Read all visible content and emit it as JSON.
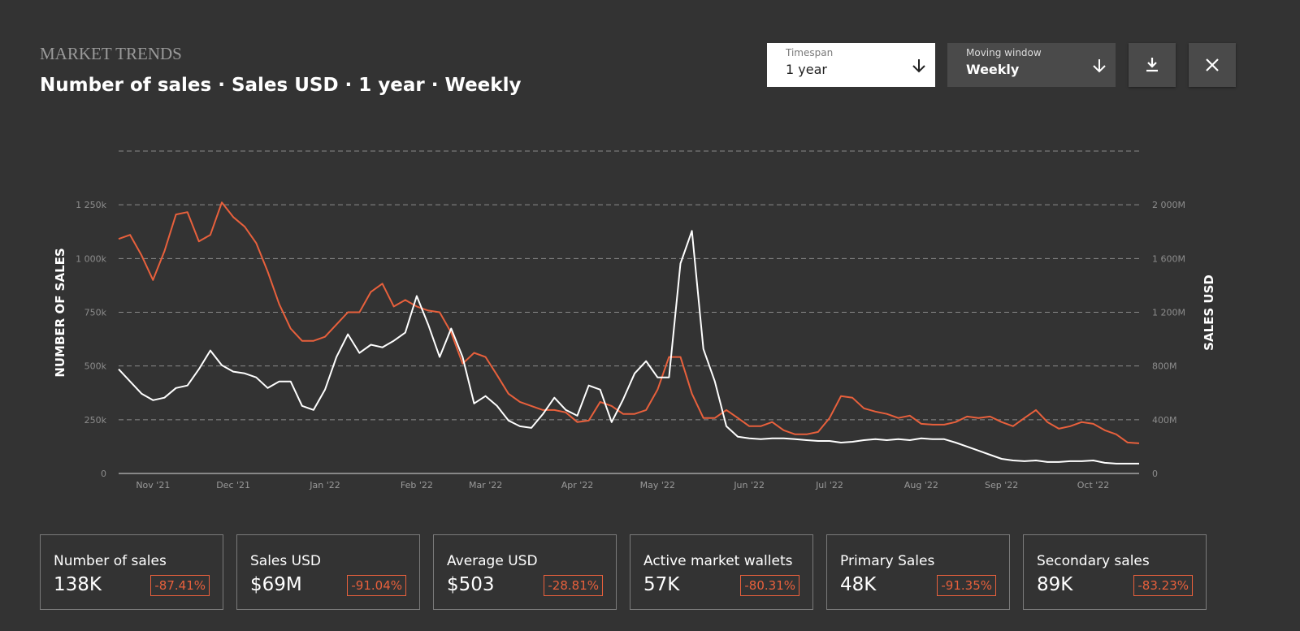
{
  "header": {
    "kicker": "MARKET TRENDS",
    "title": "Number of sales · Sales USD · 1 year · Weekly"
  },
  "controls": {
    "timespan": {
      "label": "Timespan",
      "value": "1 year"
    },
    "window": {
      "label": "Moving window",
      "value": "Weekly"
    }
  },
  "chart_data": {
    "type": "line",
    "ylabel": "NUMBER OF SALES",
    "y2label": "SALES USD",
    "categories": [
      null,
      null,
      null,
      "Nov '21",
      null,
      null,
      null,
      null,
      null,
      null,
      "Dec '21",
      null,
      null,
      null,
      null,
      null,
      null,
      null,
      "Jan '22",
      null,
      null,
      null,
      null,
      null,
      null,
      null,
      "Feb '22",
      null,
      null,
      null,
      null,
      null,
      "Mar '22",
      null,
      null,
      null,
      null,
      null,
      null,
      null,
      "Apr '22",
      null,
      null,
      null,
      null,
      null,
      null,
      "May '22",
      null,
      null,
      null,
      null,
      null,
      null,
      null,
      "Jun '22",
      null,
      null,
      null,
      null,
      null,
      null,
      "Jul '22",
      null,
      null,
      null,
      null,
      null,
      null,
      null,
      "Aug '22",
      null,
      null,
      null,
      null,
      null,
      null,
      "Sep '22",
      null,
      null,
      null,
      null,
      null,
      null,
      null,
      "Oct '22",
      null,
      null,
      null,
      null
    ],
    "series": [
      {
        "color": "#e8603c",
        "axis": "y",
        "values": [
          1091000,
          1110000,
          1015000,
          900000,
          1034000,
          1205000,
          1216000,
          1080000,
          1110000,
          1261000,
          1193000,
          1148000,
          1072000,
          939000,
          788000,
          674000,
          617000,
          617000,
          636000,
          693000,
          750000,
          750000,
          845000,
          883000,
          777000,
          807000,
          777000,
          758000,
          750000,
          655000,
          511000,
          561000,
          542000,
          458000,
          371000,
          333000,
          314000,
          295000,
          295000,
          284000,
          239000,
          246000,
          333000,
          314000,
          277000,
          277000,
          295000,
          390000,
          542000,
          542000,
          371000,
          258000,
          258000,
          295000,
          258000,
          220000,
          220000,
          239000,
          201000,
          182000,
          182000,
          193000,
          258000,
          360000,
          352000,
          303000,
          288000,
          277000,
          258000,
          269000,
          231000,
          227000,
          227000,
          239000,
          265000,
          258000,
          265000,
          239000,
          220000,
          258000,
          295000,
          239000,
          208000,
          220000,
          239000,
          231000,
          201000,
          182000,
          144000,
          140000
        ]
      },
      {
        "color": "#ffffff",
        "axis": "y2",
        "values": [
          776,
          685,
          594,
          545,
          564,
          636,
          655,
          776,
          915,
          806,
          758,
          745,
          715,
          636,
          685,
          685,
          503,
          473,
          624,
          867,
          1036,
          897,
          958,
          939,
          988,
          1048,
          1321,
          1109,
          867,
          1079,
          867,
          521,
          576,
          503,
          394,
          351,
          339,
          442,
          564,
          473,
          430,
          655,
          624,
          382,
          551,
          745,
          836,
          715,
          715,
          1563,
          1806,
          927,
          685,
          351,
          273,
          261,
          255,
          261,
          261,
          255,
          248,
          242,
          242,
          230,
          236,
          248,
          255,
          248,
          255,
          248,
          261,
          255,
          255,
          230,
          200,
          170,
          139,
          109,
          97,
          91,
          97,
          85,
          85,
          91,
          91,
          97,
          79,
          73,
          73,
          73
        ]
      }
    ],
    "ylim": [
      0,
      1500000
    ],
    "yticks": [
      0,
      {
        "value": 250000,
        "label": "250k"
      },
      {
        "value": 500000,
        "label": "500k"
      },
      {
        "value": 750000,
        "label": "750k"
      },
      {
        "value": 1000000,
        "label": "1 000k"
      },
      {
        "value": 1250000,
        "label": "1 250k"
      }
    ],
    "y2lim": [
      0,
      2400
    ],
    "y2ticks": [
      0,
      {
        "value": 400,
        "label": "400M"
      },
      {
        "value": 800,
        "label": "800M"
      },
      {
        "value": 1200,
        "label": "1 200M"
      },
      {
        "value": 1600,
        "label": "1 600M"
      },
      {
        "value": 2000,
        "label": "2 000M"
      }
    ],
    "grid": true
  },
  "stats": [
    {
      "label": "Number of sales",
      "value": "138K",
      "change": "-87.41%"
    },
    {
      "label": "Sales USD",
      "value": "$69M",
      "change": "-91.04%"
    },
    {
      "label": "Average USD",
      "value": "$503",
      "change": "-28.81%"
    },
    {
      "label": "Active market wallets",
      "value": "57K",
      "change": "-80.31%"
    },
    {
      "label": "Primary Sales",
      "value": "48K",
      "change": "-91.35%"
    },
    {
      "label": "Secondary sales",
      "value": "89K",
      "change": "-83.23%"
    }
  ]
}
